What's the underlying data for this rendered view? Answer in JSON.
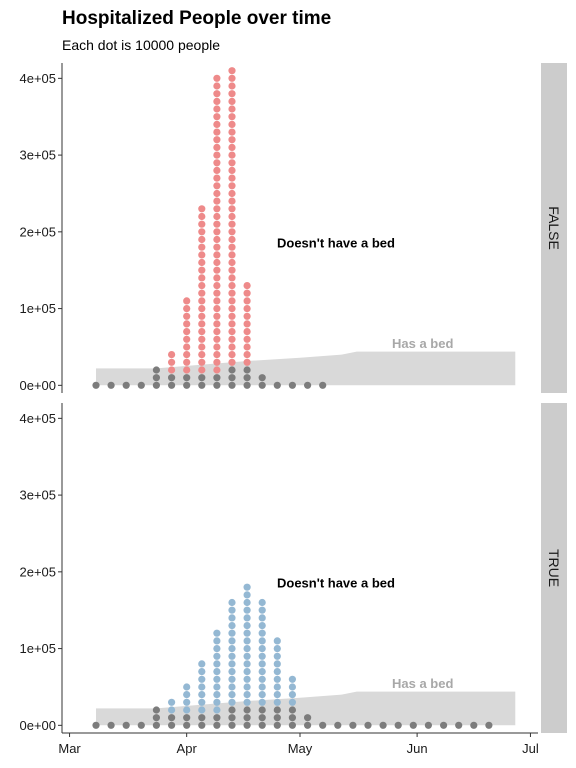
{
  "chart": {
    "title": "Hospitalized People over time",
    "subtitle": "Each dot is 10000 people"
  },
  "chart_data": {
    "type": "dotplot-area",
    "facet_labels": [
      "FALSE",
      "TRUE"
    ],
    "x_ticks": [
      {
        "label": "Mar",
        "date": "2020-03-01"
      },
      {
        "label": "Apr",
        "date": "2020-04-01"
      },
      {
        "label": "May",
        "date": "2020-05-01"
      },
      {
        "label": "Jun",
        "date": "2020-06-01"
      },
      {
        "label": "Jul",
        "date": "2020-07-01"
      }
    ],
    "xlim": [
      "2020-02-28",
      "2020-07-03"
    ],
    "y_ticks": [
      0,
      100000,
      200000,
      300000,
      400000
    ],
    "y_tick_labels": [
      "0e+00",
      "1e+05",
      "2e+05",
      "3e+05",
      "4e+05"
    ],
    "ylim": [
      -10000,
      420000
    ],
    "dot_unit": 10000,
    "colors": {
      "no_bed_false": "#ee8a8a",
      "no_bed_true": "#94b8d3",
      "has_bed": "#7c7c7c",
      "capacity_area": "#d9d9d9",
      "strip": "#cccccc"
    },
    "capacity_series": {
      "name": "Has a bed",
      "points": [
        {
          "date": "2020-03-08",
          "value": 22000
        },
        {
          "date": "2020-03-24",
          "value": 22000
        },
        {
          "date": "2020-04-08",
          "value": 28000
        },
        {
          "date": "2020-04-18",
          "value": 32000
        },
        {
          "date": "2020-05-01",
          "value": 36000
        },
        {
          "date": "2020-05-12",
          "value": 40000
        },
        {
          "date": "2020-05-16",
          "value": 44000
        },
        {
          "date": "2020-06-27",
          "value": 44000
        }
      ]
    },
    "panels": [
      {
        "facet": "FALSE",
        "annotation_no_bed": "Doesn't have a bed",
        "annotation_has_bed": "Has a bed",
        "bars": [
          {
            "date": "2020-03-08",
            "has_bed_dots": 1,
            "no_bed_dots": 0
          },
          {
            "date": "2020-03-12",
            "has_bed_dots": 1,
            "no_bed_dots": 0
          },
          {
            "date": "2020-03-16",
            "has_bed_dots": 1,
            "no_bed_dots": 0
          },
          {
            "date": "2020-03-20",
            "has_bed_dots": 1,
            "no_bed_dots": 0
          },
          {
            "date": "2020-03-24",
            "has_bed_dots": 3,
            "no_bed_dots": 0
          },
          {
            "date": "2020-03-28",
            "has_bed_dots": 2,
            "no_bed_dots": 3
          },
          {
            "date": "2020-04-01",
            "has_bed_dots": 2,
            "no_bed_dots": 10
          },
          {
            "date": "2020-04-05",
            "has_bed_dots": 2,
            "no_bed_dots": 22
          },
          {
            "date": "2020-04-09",
            "has_bed_dots": 2,
            "no_bed_dots": 39
          },
          {
            "date": "2020-04-13",
            "has_bed_dots": 3,
            "no_bed_dots": 39
          },
          {
            "date": "2020-04-17",
            "has_bed_dots": 3,
            "no_bed_dots": 11
          },
          {
            "date": "2020-04-21",
            "has_bed_dots": 2,
            "no_bed_dots": 0
          },
          {
            "date": "2020-04-25",
            "has_bed_dots": 1,
            "no_bed_dots": 0
          },
          {
            "date": "2020-04-29",
            "has_bed_dots": 1,
            "no_bed_dots": 0
          },
          {
            "date": "2020-05-03",
            "has_bed_dots": 1,
            "no_bed_dots": 0
          },
          {
            "date": "2020-05-07",
            "has_bed_dots": 1,
            "no_bed_dots": 0
          }
        ]
      },
      {
        "facet": "TRUE",
        "annotation_no_bed": "Doesn't have a bed",
        "annotation_has_bed": "Has a bed",
        "bars": [
          {
            "date": "2020-03-08",
            "has_bed_dots": 1,
            "no_bed_dots": 0
          },
          {
            "date": "2020-03-12",
            "has_bed_dots": 1,
            "no_bed_dots": 0
          },
          {
            "date": "2020-03-16",
            "has_bed_dots": 1,
            "no_bed_dots": 0
          },
          {
            "date": "2020-03-20",
            "has_bed_dots": 1,
            "no_bed_dots": 0
          },
          {
            "date": "2020-03-24",
            "has_bed_dots": 3,
            "no_bed_dots": 0
          },
          {
            "date": "2020-03-28",
            "has_bed_dots": 2,
            "no_bed_dots": 2
          },
          {
            "date": "2020-04-01",
            "has_bed_dots": 2,
            "no_bed_dots": 4
          },
          {
            "date": "2020-04-05",
            "has_bed_dots": 2,
            "no_bed_dots": 7
          },
          {
            "date": "2020-04-09",
            "has_bed_dots": 2,
            "no_bed_dots": 11
          },
          {
            "date": "2020-04-13",
            "has_bed_dots": 3,
            "no_bed_dots": 14
          },
          {
            "date": "2020-04-17",
            "has_bed_dots": 3,
            "no_bed_dots": 16
          },
          {
            "date": "2020-04-21",
            "has_bed_dots": 3,
            "no_bed_dots": 14
          },
          {
            "date": "2020-04-25",
            "has_bed_dots": 3,
            "no_bed_dots": 9
          },
          {
            "date": "2020-04-29",
            "has_bed_dots": 3,
            "no_bed_dots": 4
          },
          {
            "date": "2020-05-03",
            "has_bed_dots": 2,
            "no_bed_dots": 0
          },
          {
            "date": "2020-05-07",
            "has_bed_dots": 1,
            "no_bed_dots": 0
          },
          {
            "date": "2020-05-11",
            "has_bed_dots": 1,
            "no_bed_dots": 0
          },
          {
            "date": "2020-05-15",
            "has_bed_dots": 1,
            "no_bed_dots": 0
          },
          {
            "date": "2020-05-19",
            "has_bed_dots": 1,
            "no_bed_dots": 0
          },
          {
            "date": "2020-05-23",
            "has_bed_dots": 1,
            "no_bed_dots": 0
          },
          {
            "date": "2020-05-27",
            "has_bed_dots": 1,
            "no_bed_dots": 0
          },
          {
            "date": "2020-05-31",
            "has_bed_dots": 1,
            "no_bed_dots": 0
          },
          {
            "date": "2020-06-04",
            "has_bed_dots": 1,
            "no_bed_dots": 0
          },
          {
            "date": "2020-06-08",
            "has_bed_dots": 1,
            "no_bed_dots": 0
          },
          {
            "date": "2020-06-12",
            "has_bed_dots": 1,
            "no_bed_dots": 0
          },
          {
            "date": "2020-06-16",
            "has_bed_dots": 1,
            "no_bed_dots": 0
          },
          {
            "date": "2020-06-20",
            "has_bed_dots": 1,
            "no_bed_dots": 0
          }
        ]
      }
    ]
  }
}
